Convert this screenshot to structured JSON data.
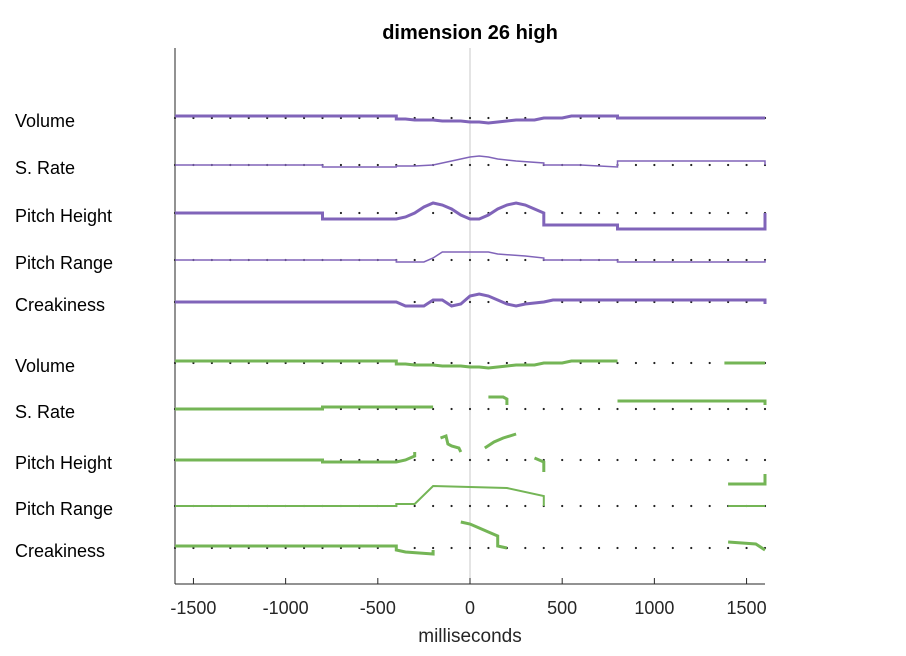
{
  "chart_data": {
    "type": "line",
    "title": "dimension 26 high",
    "xlabel": "milliseconds",
    "xlim": [
      -1600,
      1600
    ],
    "xticks": [
      -1500,
      -1000,
      -500,
      0,
      500,
      1000,
      1500
    ],
    "xtick_labels": [
      "-1500",
      "-1000",
      "-500",
      "0",
      "500",
      "1000",
      "1500"
    ],
    "zero_line": true,
    "dot_spacing_ms": 100,
    "groups": [
      {
        "color": "#8064b9",
        "rows": [
          {
            "label": "Volume",
            "width": 3,
            "segments": [
              [
                [
                  -1600,
                  1
                ],
                [
                  -400,
                  1
                ],
                [
                  -400,
                  -0.5
                ],
                [
                  -350,
                  -0.5
                ],
                [
                  -300,
                  -1
                ],
                [
                  -200,
                  -1
                ],
                [
                  -150,
                  -1.5
                ],
                [
                  -50,
                  -1.5
                ],
                [
                  0,
                  -2
                ],
                [
                  50,
                  -2
                ],
                [
                  100,
                  -2.5
                ],
                [
                  150,
                  -2
                ],
                [
                  200,
                  -1.5
                ],
                [
                  250,
                  -1
                ],
                [
                  350,
                  -1
                ],
                [
                  400,
                  0
                ],
                [
                  500,
                  0
                ],
                [
                  550,
                  1
                ],
                [
                  800,
                  1
                ],
                [
                  800,
                  0
                ],
                [
                  1600,
                  0
                ]
              ]
            ]
          },
          {
            "label": "S. Rate",
            "width": 1.5,
            "segments": [
              [
                [
                  -1600,
                  0
                ],
                [
                  -800,
                  0
                ],
                [
                  -800,
                  -1
                ],
                [
                  -400,
                  -1
                ],
                [
                  -400,
                  -0.5
                ],
                [
                  -300,
                  -0.5
                ],
                [
                  -200,
                  0
                ],
                [
                  -150,
                  1
                ],
                [
                  -100,
                  2
                ],
                [
                  -50,
                  3
                ],
                [
                  0,
                  4
                ],
                [
                  50,
                  4.5
                ],
                [
                  100,
                  4
                ],
                [
                  150,
                  3
                ],
                [
                  250,
                  2
                ],
                [
                  400,
                  1
                ],
                [
                  400,
                  0
                ],
                [
                  600,
                  0
                ],
                [
                  800,
                  -1
                ],
                [
                  800,
                  2
                ],
                [
                  1600,
                  2
                ],
                [
                  1600,
                  0
                ]
              ]
            ]
          },
          {
            "label": "Pitch Height",
            "width": 3,
            "segments": [
              [
                [
                  -1600,
                  0
                ],
                [
                  -800,
                  0
                ],
                [
                  -800,
                  -3
                ],
                [
                  -400,
                  -3
                ],
                [
                  -350,
                  -2
                ],
                [
                  -300,
                  0
                ],
                [
                  -250,
                  3
                ],
                [
                  -200,
                  5
                ],
                [
                  -150,
                  4
                ],
                [
                  -100,
                  2
                ],
                [
                  -50,
                  -1
                ],
                [
                  0,
                  -3
                ],
                [
                  50,
                  -3
                ],
                [
                  100,
                  -1
                ],
                [
                  150,
                  2
                ],
                [
                  200,
                  4
                ],
                [
                  250,
                  5
                ],
                [
                  300,
                  4
                ],
                [
                  350,
                  2
                ],
                [
                  400,
                  0
                ],
                [
                  400,
                  -6
                ],
                [
                  800,
                  -6
                ],
                [
                  800,
                  -8
                ],
                [
                  1600,
                  -8
                ],
                [
                  1600,
                  0
                ]
              ]
            ]
          },
          {
            "label": "Pitch Range",
            "width": 1.5,
            "segments": [
              [
                [
                  -1600,
                  0
                ],
                [
                  -400,
                  0
                ],
                [
                  -400,
                  -1
                ],
                [
                  -250,
                  -1
                ],
                [
                  -200,
                  1
                ],
                [
                  -150,
                  4
                ],
                [
                  100,
                  4
                ],
                [
                  150,
                  3
                ],
                [
                  300,
                  2
                ],
                [
                  400,
                  1
                ],
                [
                  400,
                  0
                ],
                [
                  800,
                  0
                ],
                [
                  800,
                  -1
                ],
                [
                  1600,
                  -1
                ],
                [
                  1600,
                  0
                ]
              ]
            ]
          },
          {
            "label": "Creakiness",
            "width": 3,
            "segments": [
              [
                [
                  -1600,
                  0
                ],
                [
                  -400,
                  0
                ],
                [
                  -350,
                  -2
                ],
                [
                  -250,
                  -2
                ],
                [
                  -200,
                  1
                ],
                [
                  -150,
                  1
                ],
                [
                  -100,
                  -2
                ],
                [
                  -50,
                  -1
                ],
                [
                  0,
                  3
                ],
                [
                  50,
                  4
                ],
                [
                  100,
                  3
                ],
                [
                  150,
                  1
                ],
                [
                  200,
                  -1
                ],
                [
                  250,
                  -2
                ],
                [
                  300,
                  -1
                ],
                [
                  400,
                  0
                ],
                [
                  450,
                  1
                ],
                [
                  600,
                  1
                ],
                [
                  800,
                  1
                ],
                [
                  1600,
                  1
                ],
                [
                  1600,
                  -1
                ]
              ]
            ]
          }
        ]
      },
      {
        "color": "#74b556",
        "rows": [
          {
            "label": "Volume",
            "width": 3,
            "segments": [
              [
                [
                  -1600,
                  1
                ],
                [
                  -400,
                  1
                ],
                [
                  -400,
                  -0.5
                ],
                [
                  -350,
                  -0.5
                ],
                [
                  -300,
                  -1
                ],
                [
                  -200,
                  -1
                ],
                [
                  -150,
                  -1.5
                ],
                [
                  -50,
                  -1.5
                ],
                [
                  0,
                  -2
                ],
                [
                  50,
                  -2
                ],
                [
                  100,
                  -2.5
                ],
                [
                  150,
                  -2
                ],
                [
                  200,
                  -1.5
                ],
                [
                  250,
                  -1
                ],
                [
                  350,
                  -1
                ],
                [
                  400,
                  0
                ],
                [
                  500,
                  0
                ],
                [
                  550,
                  1
                ],
                [
                  800,
                  1
                ]
              ],
              [
                [
                  1380,
                  0
                ],
                [
                  1600,
                  0
                ]
              ]
            ]
          },
          {
            "label": "S. Rate",
            "width": 3,
            "segments": [
              [
                [
                  -1600,
                  0
                ],
                [
                  -800,
                  0
                ],
                [
                  -800,
                  1
                ],
                [
                  -200,
                  1
                ]
              ],
              [
                [
                  100,
                  6
                ],
                [
                  180,
                  6
                ],
                [
                  200,
                  5
                ],
                [
                  200,
                  2
                ]
              ],
              [
                [
                  800,
                  4
                ],
                [
                  1600,
                  4
                ],
                [
                  1600,
                  2
                ]
              ]
            ]
          },
          {
            "label": "Pitch Height",
            "width": 3,
            "segments": [
              [
                [
                  -1600,
                  0
                ],
                [
                  -800,
                  0
                ],
                [
                  -800,
                  -1
                ],
                [
                  -400,
                  -1
                ],
                [
                  -350,
                  0
                ],
                [
                  -300,
                  2
                ],
                [
                  -300,
                  4
                ]
              ],
              [
                [
                  -160,
                  11
                ],
                [
                  -130,
                  12
                ],
                [
                  -120,
                  8
                ],
                [
                  -100,
                  7
                ],
                [
                  -60,
                  6
                ],
                [
                  -50,
                  4
                ]
              ],
              [
                [
                  80,
                  6
                ],
                [
                  130,
                  9
                ],
                [
                  180,
                  11
                ],
                [
                  250,
                  13
                ]
              ],
              [
                [
                  350,
                  1
                ],
                [
                  400,
                  -1
                ],
                [
                  400,
                  -6
                ]
              ],
              [
                [
                  1400,
                  -12
                ],
                [
                  1600,
                  -12
                ],
                [
                  1600,
                  -7
                ]
              ]
            ]
          },
          {
            "label": "Pitch Range",
            "width": 2,
            "segments": [
              [
                [
                  -1600,
                  0
                ],
                [
                  -400,
                  0
                ],
                [
                  -400,
                  1
                ],
                [
                  -300,
                  1
                ],
                [
                  -200,
                  10
                ],
                [
                  200,
                  9
                ],
                [
                  400,
                  5
                ],
                [
                  400,
                  0
                ]
              ],
              [
                [
                  1400,
                  0
                ],
                [
                  1600,
                  0
                ]
              ]
            ]
          },
          {
            "label": "Creakiness",
            "width": 3,
            "segments": [
              [
                [
                  -1600,
                  1
                ],
                [
                  -400,
                  1
                ],
                [
                  -400,
                  -1
                ],
                [
                  -350,
                  -2
                ],
                [
                  -200,
                  -3
                ],
                [
                  -200,
                  -1
                ]
              ],
              [
                [
                  -50,
                  13
                ],
                [
                  0,
                  12
                ],
                [
                  50,
                  10
                ],
                [
                  100,
                  8
                ],
                [
                  150,
                  6
                ],
                [
                  150,
                  1
                ],
                [
                  200,
                  0
                ]
              ],
              [
                [
                  1400,
                  3
                ],
                [
                  1550,
                  2
                ],
                [
                  1600,
                  -1
                ]
              ]
            ]
          }
        ]
      }
    ]
  }
}
